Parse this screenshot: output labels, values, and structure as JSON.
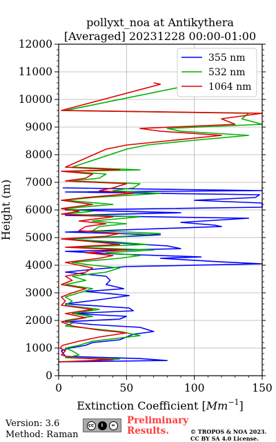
{
  "chart_data": {
    "type": "line",
    "title_line1": "pollyxt_noa at Antikythera",
    "title_line2": "[Averaged] 20231228 00:00-01:00",
    "xlabel": "Extinction Coefficient [",
    "xlabel_unit": "Mm",
    "xlabel_exp": "−1",
    "xlabel_close": "]",
    "ylabel": "Height (m)",
    "xlim": [
      0,
      150
    ],
    "ylim": [
      0,
      12000
    ],
    "xticks": [
      "0",
      "50",
      "100",
      "150"
    ],
    "yticks": [
      "0",
      "1000",
      "2000",
      "3000",
      "4000",
      "5000",
      "6000",
      "7000",
      "8000",
      "9000",
      "10000",
      "11000",
      "12000"
    ],
    "grid": true,
    "legend_position": "top-right",
    "series": [
      {
        "name": "355 nm",
        "color": "#0000ff",
        "points": [
          [
            0,
            500
          ],
          [
            80,
            550
          ],
          [
            60,
            620
          ],
          [
            5,
            700
          ],
          [
            2,
            900
          ],
          [
            8,
            1000
          ],
          [
            20,
            1100
          ],
          [
            25,
            1200
          ],
          [
            45,
            1300
          ],
          [
            50,
            1400
          ],
          [
            55,
            1500
          ],
          [
            70,
            1600
          ],
          [
            60,
            1750
          ],
          [
            25,
            1850
          ],
          [
            5,
            1950
          ],
          [
            45,
            2050
          ],
          [
            50,
            2150
          ],
          [
            10,
            2250
          ],
          [
            55,
            2350
          ],
          [
            52,
            2450
          ],
          [
            5,
            2600
          ],
          [
            30,
            2750
          ],
          [
            52,
            2900
          ],
          [
            20,
            3050
          ],
          [
            48,
            3150
          ],
          [
            35,
            3300
          ],
          [
            38,
            3450
          ],
          [
            35,
            3600
          ],
          [
            5,
            3750
          ],
          [
            25,
            3850
          ],
          [
            50,
            3950
          ],
          [
            150,
            4050
          ],
          [
            120,
            4120
          ],
          [
            75,
            4250
          ],
          [
            105,
            4300
          ],
          [
            45,
            4400
          ],
          [
            5,
            4500
          ],
          [
            90,
            4600
          ],
          [
            80,
            4700
          ],
          [
            45,
            4800
          ],
          [
            5,
            4950
          ],
          [
            55,
            5050
          ],
          [
            75,
            5100
          ],
          [
            5,
            5200
          ],
          [
            60,
            5300
          ],
          [
            120,
            5400
          ],
          [
            115,
            5450
          ],
          [
            90,
            5550
          ],
          [
            140,
            5700
          ],
          [
            5,
            5800
          ],
          [
            90,
            5900
          ],
          [
            5,
            6000
          ],
          [
            150,
            6100
          ],
          [
            150,
            6250
          ],
          [
            100,
            6350
          ],
          [
            145,
            6450
          ],
          [
            148,
            6550
          ],
          [
            5,
            6650
          ],
          [
            150,
            6700
          ],
          [
            3,
            6800
          ]
        ]
      },
      {
        "name": "532 nm",
        "color": "#00b000",
        "points": [
          [
            0,
            500
          ],
          [
            30,
            560
          ],
          [
            45,
            600
          ],
          [
            5,
            650
          ],
          [
            15,
            750
          ],
          [
            10,
            900
          ],
          [
            5,
            1000
          ],
          [
            15,
            1100
          ],
          [
            25,
            1250
          ],
          [
            60,
            1450
          ],
          [
            45,
            1600
          ],
          [
            25,
            1700
          ],
          [
            5,
            1800
          ],
          [
            10,
            1900
          ],
          [
            5,
            2000
          ],
          [
            25,
            2150
          ],
          [
            10,
            2250
          ],
          [
            30,
            2400
          ],
          [
            5,
            2550
          ],
          [
            10,
            2700
          ],
          [
            5,
            2850
          ],
          [
            15,
            3000
          ],
          [
            25,
            3150
          ],
          [
            5,
            3300
          ],
          [
            20,
            3450
          ],
          [
            10,
            3600
          ],
          [
            35,
            3750
          ],
          [
            45,
            3900
          ],
          [
            25,
            4000
          ],
          [
            10,
            4100
          ],
          [
            45,
            4250
          ],
          [
            60,
            4350
          ],
          [
            35,
            4450
          ],
          [
            70,
            4550
          ],
          [
            10,
            4650
          ],
          [
            65,
            4750
          ],
          [
            40,
            4850
          ],
          [
            5,
            4950
          ],
          [
            50,
            5050
          ],
          [
            75,
            5150
          ],
          [
            25,
            5250
          ],
          [
            30,
            5400
          ],
          [
            50,
            5500
          ],
          [
            25,
            5600
          ],
          [
            60,
            5750
          ],
          [
            5,
            5850
          ],
          [
            25,
            5950
          ],
          [
            5,
            6050
          ],
          [
            40,
            6200
          ],
          [
            5,
            6350
          ],
          [
            25,
            6450
          ],
          [
            75,
            6600
          ],
          [
            40,
            6700
          ],
          [
            55,
            6800
          ],
          [
            60,
            6950
          ],
          [
            10,
            7050
          ],
          [
            30,
            7150
          ],
          [
            35,
            7300
          ],
          [
            5,
            7400
          ],
          [
            60,
            7450
          ],
          [
            10,
            7550
          ],
          [
            50,
            8200
          ],
          [
            65,
            8350
          ],
          [
            95,
            8500
          ],
          [
            140,
            8700
          ],
          [
            90,
            8850
          ],
          [
            80,
            8950
          ],
          [
            150,
            9100
          ],
          [
            135,
            9300
          ],
          [
            140,
            9500
          ],
          [
            5,
            9600
          ],
          [
            100,
            10550
          ],
          [
            95,
            10600
          ]
        ]
      },
      {
        "name": "1064 nm",
        "color": "#dd0000",
        "points": [
          [
            0,
            500
          ],
          [
            40,
            580
          ],
          [
            10,
            650
          ],
          [
            2,
            750
          ],
          [
            5,
            900
          ],
          [
            1,
            1000
          ],
          [
            3,
            1100
          ],
          [
            15,
            1250
          ],
          [
            30,
            1400
          ],
          [
            50,
            1550
          ],
          [
            30,
            1650
          ],
          [
            10,
            1800
          ],
          [
            2,
            1950
          ],
          [
            20,
            2100
          ],
          [
            5,
            2250
          ],
          [
            25,
            2400
          ],
          [
            2,
            2550
          ],
          [
            5,
            2700
          ],
          [
            2,
            2850
          ],
          [
            10,
            3000
          ],
          [
            20,
            3150
          ],
          [
            2,
            3300
          ],
          [
            10,
            3450
          ],
          [
            5,
            3600
          ],
          [
            20,
            3750
          ],
          [
            25,
            3900
          ],
          [
            15,
            4000
          ],
          [
            5,
            4100
          ],
          [
            30,
            4250
          ],
          [
            40,
            4350
          ],
          [
            20,
            4450
          ],
          [
            50,
            4550
          ],
          [
            5,
            4650
          ],
          [
            45,
            4750
          ],
          [
            25,
            4850
          ],
          [
            2,
            4950
          ],
          [
            35,
            5050
          ],
          [
            45,
            5150
          ],
          [
            15,
            5250
          ],
          [
            20,
            5400
          ],
          [
            35,
            5500
          ],
          [
            15,
            5600
          ],
          [
            40,
            5750
          ],
          [
            2,
            5850
          ],
          [
            15,
            5950
          ],
          [
            2,
            6050
          ],
          [
            25,
            6200
          ],
          [
            2,
            6350
          ],
          [
            20,
            6450
          ],
          [
            55,
            6600
          ],
          [
            30,
            6700
          ],
          [
            40,
            6800
          ],
          [
            50,
            6950
          ],
          [
            5,
            7050
          ],
          [
            20,
            7150
          ],
          [
            25,
            7300
          ],
          [
            2,
            7400
          ],
          [
            45,
            7450
          ],
          [
            5,
            7550
          ],
          [
            35,
            8200
          ],
          [
            50,
            8350
          ],
          [
            80,
            8500
          ],
          [
            120,
            8700
          ],
          [
            75,
            8850
          ],
          [
            60,
            8950
          ],
          [
            130,
            9100
          ],
          [
            120,
            9300
          ],
          [
            150,
            9500
          ],
          [
            2,
            9600
          ],
          [
            75,
            10550
          ],
          [
            70,
            10600
          ]
        ]
      }
    ]
  },
  "footer": {
    "version": "Version: 3.6",
    "method": "Method: Raman",
    "cc_icons": [
      "cc",
      "i",
      "="
    ],
    "preliminary_line1": "Preliminary",
    "preliminary_line2": "Results.",
    "copyright_line1": "© TROPOS & NOA 2023.",
    "copyright_line2": "CC BY SA 4.0 License."
  }
}
